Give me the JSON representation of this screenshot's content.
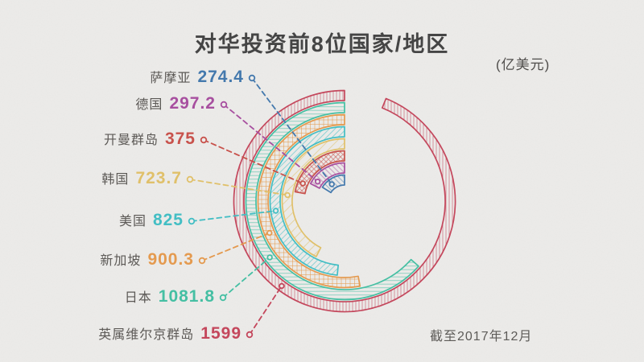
{
  "title": "对华投资前8位国家/地区",
  "unit_note": "(亿美元)",
  "footnote": "截至2017年12月",
  "chart_data": {
    "type": "radial-bar",
    "title": "对华投资前8位国家/地区",
    "unit": "亿美元",
    "as_of": "截至2017年12月",
    "start_angle": "top",
    "direction": "counterclockwise",
    "max_value": 1599,
    "max_sweep_deg": 338,
    "ring_order": "smallest-innermost",
    "items": [
      {
        "label": "萨摩亚",
        "value": 274.4,
        "color": "#4479ad",
        "hatch": "diag-b"
      },
      {
        "label": "德国",
        "value": 297.2,
        "color": "#a74f9f",
        "hatch": "diag-b"
      },
      {
        "label": "开曼群岛",
        "value": 375,
        "color": "#c8524c",
        "hatch": "cross"
      },
      {
        "label": "韩国",
        "value": 723.7,
        "color": "#e0c06a",
        "hatch": "diag-sparse"
      },
      {
        "label": "美国",
        "value": 825,
        "color": "#43bec4",
        "hatch": "diag-f"
      },
      {
        "label": "新加坡",
        "value": 900.3,
        "color": "#e49a4f",
        "hatch": "grid"
      },
      {
        "label": "日本",
        "value": 1081.8,
        "color": "#45bfa3",
        "hatch": "hlines"
      },
      {
        "label": "英属维尔京群岛",
        "value": 1599,
        "color": "#c4475c",
        "hatch": "vlines"
      }
    ]
  }
}
